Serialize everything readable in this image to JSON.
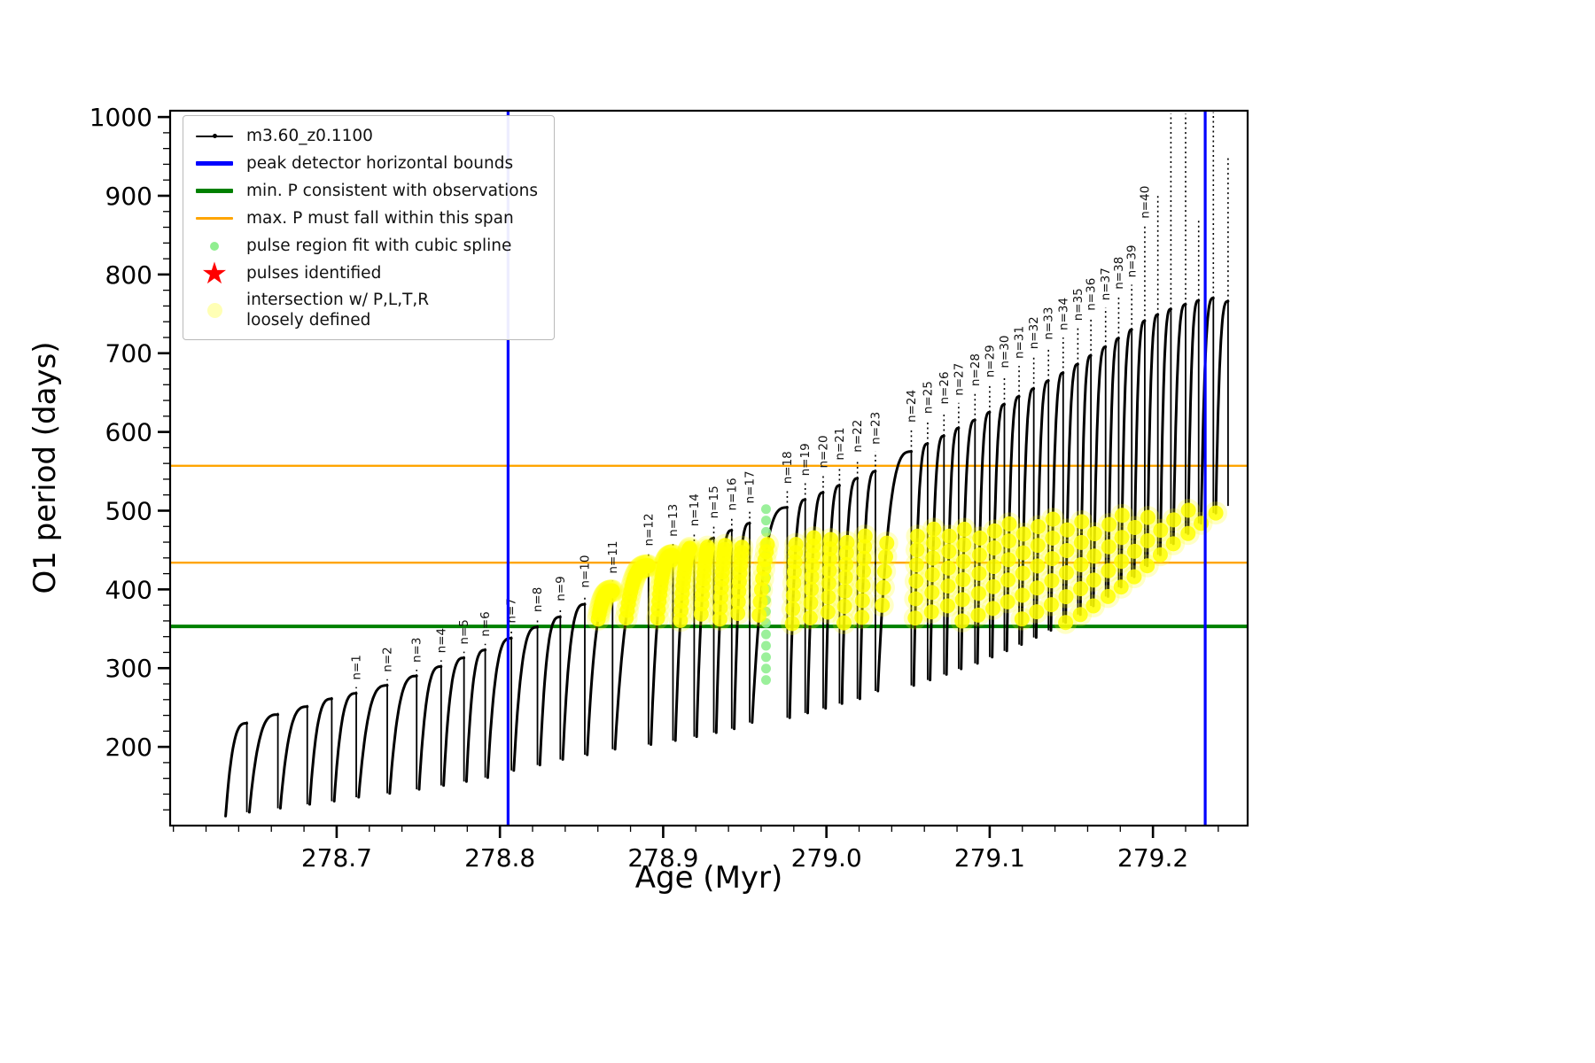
{
  "chart_data": {
    "type": "line",
    "title": "",
    "xlabel": "Age (Myr)",
    "ylabel": "O1 period (days)",
    "xlim": [
      278.598,
      279.258
    ],
    "ylim": [
      100,
      1008
    ],
    "grid": false,
    "legend_position": "upper left",
    "x_ticks": {
      "values": [
        278.7,
        278.8,
        278.9,
        279.0,
        279.1,
        279.2
      ],
      "labels": [
        "278.7",
        "278.8",
        "278.9",
        "279.0",
        "279.1",
        "279.2"
      ],
      "minor_step": 0.02
    },
    "y_ticks": {
      "values": [
        200,
        300,
        400,
        500,
        600,
        700,
        800,
        900,
        1000
      ],
      "labels": [
        "200",
        "300",
        "400",
        "500",
        "600",
        "700",
        "800",
        "900",
        "1000"
      ],
      "minor_step": 20
    },
    "series_label": "m3.60_z0.1100",
    "series_color": "#000000",
    "vlines_blue": {
      "color": "#0000ff",
      "x": [
        278.805,
        279.232
      ],
      "label": "peak detector horizontal bounds"
    },
    "hline_green": {
      "color": "#008000",
      "y": 353,
      "label": "min. P consistent with observations"
    },
    "hlines_orange": {
      "color": "#ffa500",
      "y": [
        434,
        557
      ],
      "label": "max. P must fall within this span"
    },
    "green_dots": {
      "x": 278.963,
      "y_min": 285,
      "y_max": 502,
      "count": 16,
      "color": "#90ee90",
      "label": "pulse region fit with cubic spline"
    },
    "yellow": {
      "color": "#ffff00",
      "x_start": 278.86,
      "y_min": 356,
      "top_base": 450,
      "top_ref": 278.9,
      "top_slope": 160,
      "label": "intersection w/ P,L,T,R loosely defined"
    },
    "curve_x_start": 278.632,
    "final_min": 506,
    "pulses_fields": [
      "n",
      "x_peak",
      "arc_top",
      "spike_top",
      "trough_before"
    ],
    "pulses": [
      [
        null,
        278.645,
        230,
        236,
        112
      ],
      [
        null,
        278.664,
        241,
        247,
        117
      ],
      [
        null,
        278.682,
        251,
        257,
        122
      ],
      [
        null,
        278.697,
        261,
        267,
        127
      ],
      [
        1,
        278.712,
        268,
        276,
        131
      ],
      [
        2,
        278.731,
        278,
        286,
        136
      ],
      [
        3,
        278.749,
        290,
        298,
        141
      ],
      [
        4,
        278.764,
        302,
        310,
        146
      ],
      [
        5,
        278.778,
        313,
        321,
        151
      ],
      [
        6,
        278.791,
        323,
        331,
        156
      ],
      [
        7,
        278.807,
        338,
        348,
        161
      ],
      [
        8,
        278.823,
        352,
        362,
        170
      ],
      [
        9,
        278.837,
        365,
        376,
        177
      ],
      [
        10,
        278.852,
        381,
        393,
        184
      ],
      [
        11,
        278.869,
        398,
        411,
        190
      ],
      [
        12,
        278.891,
        430,
        446,
        197
      ],
      [
        13,
        278.906,
        443,
        458,
        203
      ],
      [
        14,
        278.919,
        455,
        471,
        208
      ],
      [
        15,
        278.931,
        465,
        481,
        213
      ],
      [
        16,
        278.942,
        475,
        491,
        218
      ],
      [
        17,
        278.953,
        484,
        500,
        223
      ],
      [
        18,
        278.976,
        504,
        525,
        231
      ],
      [
        19,
        278.987,
        514,
        535,
        237
      ],
      [
        20,
        278.998,
        523,
        545,
        243
      ],
      [
        21,
        279.008,
        532,
        555,
        249
      ],
      [
        22,
        279.019,
        541,
        565,
        255
      ],
      [
        23,
        279.03,
        550,
        575,
        261
      ],
      [
        24,
        279.052,
        575,
        603,
        271
      ],
      [
        25,
        279.062,
        585,
        614,
        278
      ],
      [
        26,
        279.072,
        595,
        626,
        285
      ],
      [
        27,
        279.081,
        605,
        637,
        292
      ],
      [
        28,
        279.091,
        615,
        649,
        299
      ],
      [
        29,
        279.1,
        625,
        660,
        306
      ],
      [
        30,
        279.109,
        635,
        672,
        314
      ],
      [
        31,
        279.118,
        645,
        684,
        322
      ],
      [
        32,
        279.127,
        655,
        696,
        330
      ],
      [
        33,
        279.136,
        665,
        708,
        339
      ],
      [
        34,
        279.145,
        675,
        720,
        348
      ],
      [
        35,
        279.154,
        686,
        732,
        358
      ],
      [
        36,
        279.162,
        697,
        745,
        368
      ],
      [
        37,
        279.171,
        708,
        758,
        379
      ],
      [
        38,
        279.179,
        719,
        772,
        391
      ],
      [
        39,
        279.187,
        730,
        787,
        403
      ],
      [
        40,
        279.195,
        741,
        862,
        416
      ],
      [
        null,
        279.203,
        749,
        900,
        430
      ],
      [
        null,
        279.211,
        756,
        1004,
        444
      ],
      [
        null,
        279.22,
        762,
        1004,
        458
      ],
      [
        null,
        279.228,
        767,
        870,
        471
      ],
      [
        null,
        279.237,
        770,
        1006,
        484
      ],
      [
        null,
        279.246,
        766,
        948,
        497
      ]
    ]
  },
  "legend": {
    "items": [
      {
        "label": "m3.60_z0.1100",
        "swatch": "line-dot",
        "color": "#000000"
      },
      {
        "label": "peak detector horizontal bounds",
        "swatch": "thick-line",
        "color": "#0000ff"
      },
      {
        "label": "min. P consistent with observations",
        "swatch": "thick-line",
        "color": "#008000"
      },
      {
        "label": "max. P must fall within this span",
        "swatch": "line",
        "color": "#ffa500"
      },
      {
        "label": "pulse region fit with cubic spline",
        "swatch": "dot",
        "color": "#90ee90"
      },
      {
        "label": "pulses identified",
        "swatch": "star",
        "color": "#ff0000"
      },
      {
        "label": "intersection w/ P,L,T,R\nloosely defined",
        "swatch": "big-dot",
        "color": "#ffffa8"
      }
    ]
  }
}
